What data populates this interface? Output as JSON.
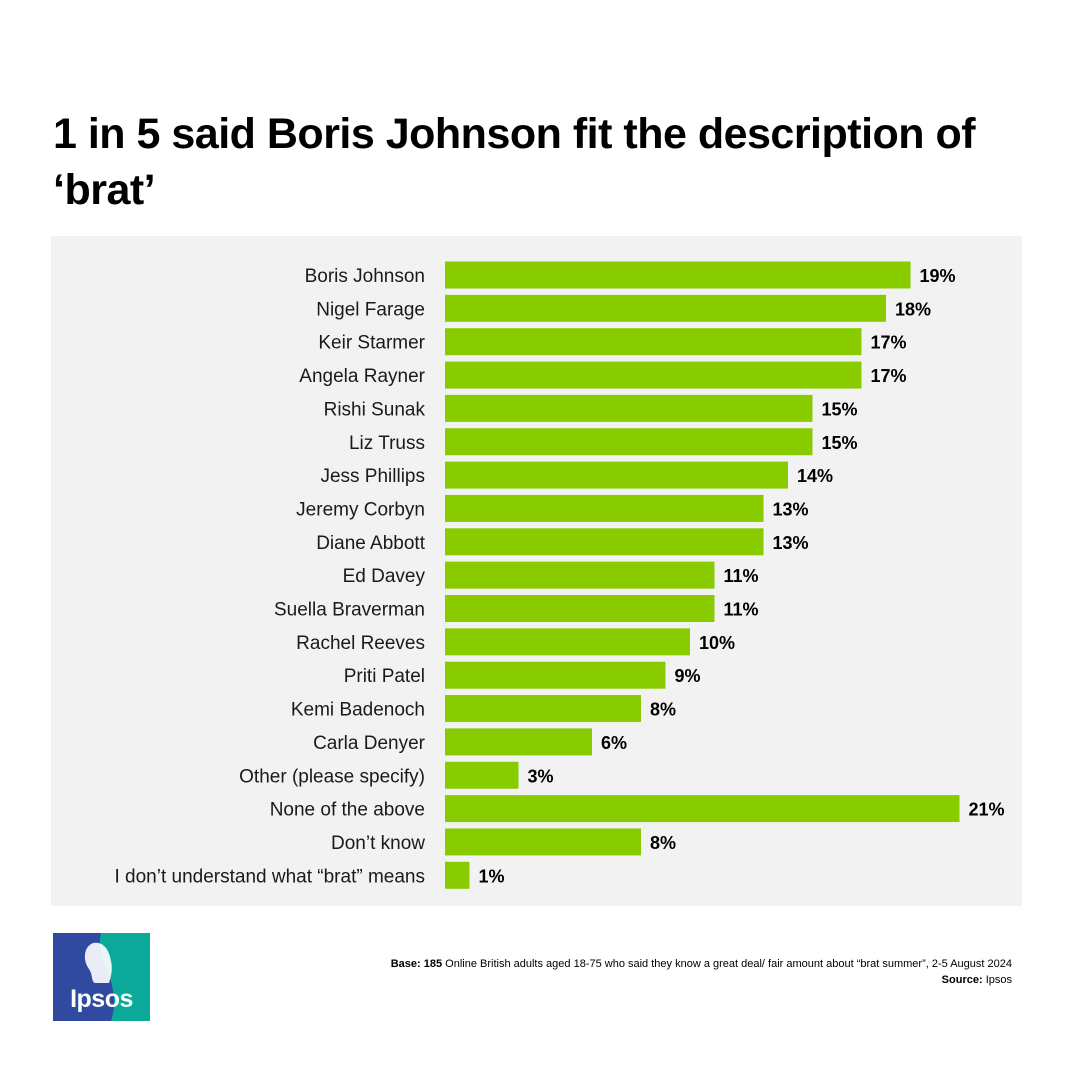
{
  "title": "1 in 5 said Boris Johnson fit the description of ‘brat’",
  "colors": {
    "bar": "#88cc00",
    "panel": "#f2f2f2",
    "logo_blue": "#2f4aa0",
    "logo_teal": "#0aa99a"
  },
  "footer": {
    "base_label": "Base:",
    "base_count": "185",
    "base_text": " Online British adults aged 18-75 who said they know a great deal/ fair amount about “brat summer”, 2-5 August 2024",
    "source_label": "Source:",
    "source_text": " Ipsos"
  },
  "logo": {
    "text": "Ipsos"
  },
  "chart_data": {
    "type": "bar",
    "orientation": "horizontal",
    "title": "1 in 5 said Boris Johnson fit the description of ‘brat’",
    "xlim": [
      0,
      21
    ],
    "grid": false,
    "categories": [
      "Boris Johnson",
      "Nigel Farage",
      "Keir Starmer",
      "Angela Rayner",
      "Rishi Sunak",
      "Liz Truss",
      "Jess Phillips",
      "Jeremy Corbyn",
      "Diane Abbott",
      "Ed Davey",
      "Suella Braverman",
      "Rachel Reeves",
      "Priti Patel",
      "Kemi Badenoch",
      "Carla Denyer",
      "Other (please specify)",
      "None of the above",
      "Don’t know",
      "I don’t understand what “brat” means"
    ],
    "values": [
      19,
      18,
      17,
      17,
      15,
      15,
      14,
      13,
      13,
      11,
      11,
      10,
      9,
      8,
      6,
      3,
      21,
      8,
      1
    ],
    "value_labels": [
      "19%",
      "18%",
      "17%",
      "17%",
      "15%",
      "15%",
      "14%",
      "13%",
      "13%",
      "11%",
      "11%",
      "10%",
      "9%",
      "8%",
      "6%",
      "3%",
      "21%",
      "8%",
      "1%"
    ]
  }
}
